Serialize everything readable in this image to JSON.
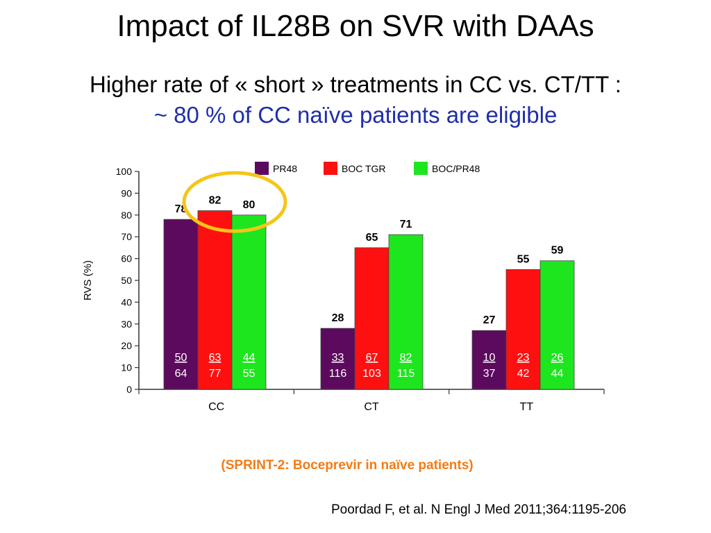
{
  "slide": {
    "title": "Impact of IL28B on SVR with DAAs",
    "subtitle_line1": "Higher rate of « short » treatments in CC vs. CT/TT :",
    "subtitle_line2": "~ 80 % of CC naïve patients are eligible",
    "note": "(SPRINT-2: Boceprevir in naïve patients)",
    "citation": "Poordad F, et al. N Engl J Med 2011;364:1195-206"
  },
  "chart_data": {
    "type": "bar",
    "title": "",
    "xlabel": "",
    "ylabel": "RVS (%)",
    "ylim": [
      0,
      100
    ],
    "yticks": [
      0,
      10,
      20,
      30,
      40,
      50,
      60,
      70,
      80,
      90,
      100
    ],
    "categories": [
      "CC",
      "CT",
      "TT"
    ],
    "legend_position": "top",
    "series": [
      {
        "name": "PR48",
        "color": "#5c0a5e",
        "values": [
          78,
          28,
          27
        ],
        "numerators": [
          "50",
          "33",
          "10"
        ],
        "denominators": [
          "64",
          "116",
          "37"
        ]
      },
      {
        "name": "BOC TGR",
        "color": "#ff1010",
        "values": [
          82,
          65,
          55
        ],
        "numerators": [
          "63",
          "67",
          "23"
        ],
        "denominators": [
          "77",
          "103",
          "42"
        ]
      },
      {
        "name": "BOC/PR48",
        "color": "#1ee61e",
        "values": [
          80,
          71,
          59
        ],
        "numerators": [
          "44",
          "82",
          "26"
        ],
        "denominators": [
          "55",
          "115",
          "44"
        ]
      }
    ],
    "highlight": {
      "category": "CC",
      "shape": "ellipse",
      "color": "#f5c518"
    }
  }
}
